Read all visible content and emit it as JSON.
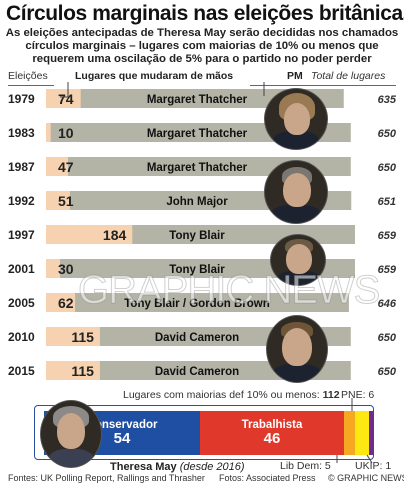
{
  "title": "Círculos marginais nas eleições britânicas",
  "subtitle_lines": [
    "As eleições antecipadas de Theresa May serão decididas nos chamados",
    "círculos marginais – lugares com maiorias de 10% ou menos que",
    "requerem uma oscilação de 5% para o partido no poder perder"
  ],
  "header": {
    "elections": "Eleições",
    "changed": "Lugares que mudaram de mãos",
    "pm": "PM",
    "total": "Total de lugares"
  },
  "colors": {
    "bar_bg": "#b3b3a6",
    "changed_fill": "#f6d2b0",
    "conservative": "#1f4fa3",
    "labour": "#e1382c",
    "libdem": "#f7a823",
    "snp": "#fde812",
    "ukip": "#6e2d8c"
  },
  "chart_data": {
    "type": "bar",
    "title": "Círculos marginais nas eleições britânicas",
    "categories": [
      "1979",
      "1983",
      "1987",
      "1992",
      "1997",
      "2001",
      "2005",
      "2010",
      "2015"
    ],
    "series": [
      {
        "name": "Lugares que mudaram de mãos",
        "values": [
          74,
          10,
          47,
          51,
          184,
          30,
          62,
          115,
          115
        ]
      },
      {
        "name": "Total de lugares",
        "values": [
          635,
          650,
          650,
          651,
          659,
          659,
          646,
          650,
          650
        ]
      }
    ],
    "pm": [
      "Margaret Thatcher",
      "Margaret Thatcher",
      "Margaret Thatcher",
      "John Major",
      "Tony Blair",
      "Tony Blair",
      "Tony Blair / Gordon Brown",
      "David Cameron",
      "David Cameron"
    ],
    "xlim": [
      0,
      659
    ]
  },
  "marginal": {
    "label": "Lugares com maiorias def 10% ou menos:",
    "value": "112",
    "parties": [
      {
        "name": "Conservador",
        "seats": 54
      },
      {
        "name": "Trabalhista",
        "seats": 46
      },
      {
        "name": "Lib Dem",
        "seats": 5
      },
      {
        "name": "PNE",
        "seats": 6
      },
      {
        "name": "UKIP",
        "seats": 1
      }
    ],
    "pne_label": "PNE: 6",
    "libdem_label": "Lib Dem: 5",
    "ukip_label": "UKIP: 1"
  },
  "may_caption": {
    "name": "Theresa May",
    "since": "(desde 2016)"
  },
  "footer": {
    "sources": "Fontes: UK Polling Report, Rallings and Thrasher",
    "photos": "Fotos: Associated Press",
    "credit": "© GRAPHIC NEWS"
  },
  "watermark": "GRAPHIC NEWS"
}
